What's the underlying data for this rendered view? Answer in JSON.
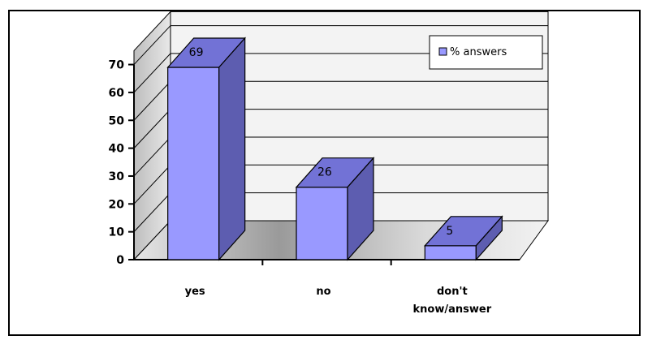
{
  "chart_data": {
    "type": "bar",
    "categories": [
      "yes",
      "no",
      "don't\nknow/answer"
    ],
    "series": [
      {
        "name": "% answers",
        "values": [
          69,
          26,
          5
        ]
      }
    ],
    "data_labels": [
      "69",
      "26",
      "5"
    ],
    "yticks": [
      0,
      10,
      20,
      30,
      40,
      50,
      60,
      70
    ],
    "ylim": [
      0,
      70
    ],
    "grid": true,
    "legend_position": "top-right",
    "style": "3d-column",
    "colors": {
      "bar_front": "#9999ff",
      "bar_top": "#7272d6",
      "bar_side": "#5d5db0",
      "wall": "#f3f3f3",
      "floor": "#c8c8c8"
    }
  }
}
